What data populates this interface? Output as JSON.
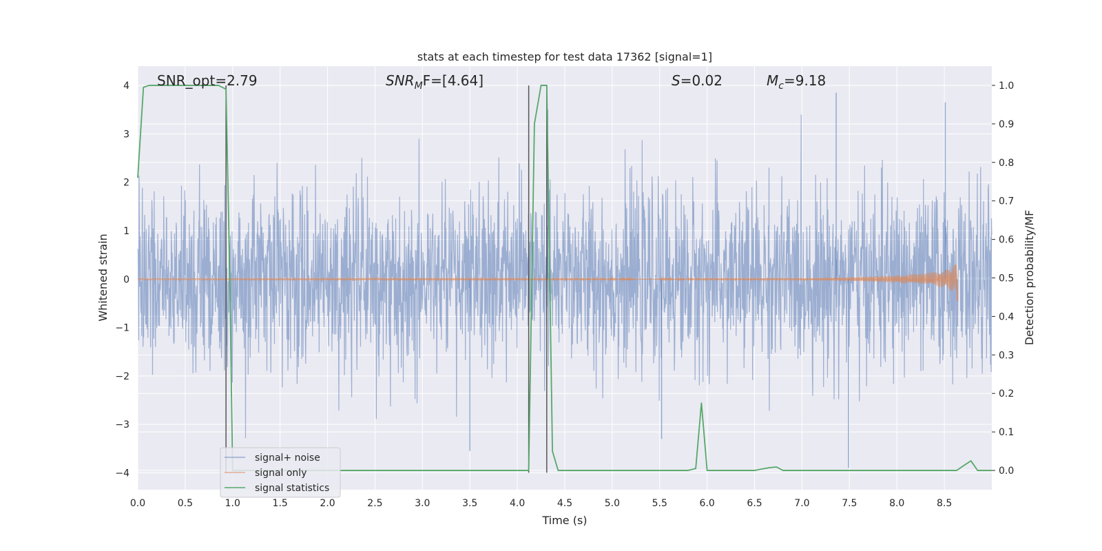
{
  "chart_data": {
    "type": "line",
    "title": "stats at each timestep for test data 17362 [signal=1]",
    "xlabel": "Time (s)",
    "ylabel_left": "Whitened strain",
    "ylabel_right": "Detection probability/MF",
    "xlim": [
      0.0,
      9.0
    ],
    "ylim_left": [
      -4.35,
      4.4
    ],
    "ylim_right": [
      -0.05,
      1.05
    ],
    "x_ticks": [
      "0.0",
      "0.5",
      "1.0",
      "1.5",
      "2.0",
      "2.5",
      "3.0",
      "3.5",
      "4.0",
      "4.5",
      "5.0",
      "5.5",
      "6.0",
      "6.5",
      "7.0",
      "7.5",
      "8.0",
      "8.5"
    ],
    "y_left_ticks": [
      "4",
      "3",
      "2",
      "1",
      "0",
      "−1",
      "−2",
      "−3",
      "−4"
    ],
    "y_right_ticks": [
      "1.0",
      "0.9",
      "0.8",
      "0.7",
      "0.6",
      "0.5",
      "0.4",
      "0.3",
      "0.2",
      "0.1",
      "0.0"
    ],
    "grid": true,
    "legend_position": "lower-left",
    "annotations": {
      "snr_opt": "SNR_opt=2.79",
      "snr_mf_main": "SNR",
      "snr_mf_sub": "M",
      "snr_mf_tail": "F=[4.64]",
      "s_main": "S",
      "s_tail": "=0.02",
      "mc_main": "M",
      "mc_sub": "c",
      "mc_tail": "=9.18"
    },
    "vertical_lines_x": [
      0.93,
      4.12,
      4.31
    ],
    "vertical_line_span_left": [
      -4.0,
      4.0
    ],
    "series": [
      {
        "name": "signal+ noise",
        "axis": "left",
        "color": "#4c72b0",
        "kind": "noise",
        "noise_sigma": 0.9,
        "outliers": [
          [
            3.5,
            -3.55
          ],
          [
            4.32,
            3.5
          ],
          [
            5.52,
            -3.3
          ],
          [
            7.49,
            -3.9
          ],
          [
            8.51,
            3.65
          ],
          [
            7.36,
            3.85
          ]
        ]
      },
      {
        "name": "signal only",
        "axis": "left",
        "color": "#dd8452",
        "kind": "chirp",
        "envelope": [
          [
            0.0,
            0.02
          ],
          [
            7.0,
            0.02
          ],
          [
            7.5,
            0.04
          ],
          [
            8.0,
            0.08
          ],
          [
            8.3,
            0.12
          ],
          [
            8.5,
            0.18
          ],
          [
            8.62,
            0.3
          ],
          [
            8.64,
            -0.45
          ]
        ]
      },
      {
        "name": "signal statistics",
        "axis": "right",
        "color": "#55a868",
        "x": [
          0.0,
          0.06,
          0.12,
          0.2,
          0.5,
          0.85,
          0.93,
          0.97,
          1.0,
          1.1,
          2.0,
          3.0,
          4.0,
          4.12,
          4.18,
          4.25,
          4.31,
          4.37,
          4.43,
          5.0,
          5.5,
          5.8,
          5.88,
          5.94,
          6.0,
          6.5,
          6.65,
          6.73,
          6.8,
          7.0,
          8.0,
          8.5,
          8.63,
          8.7,
          8.78,
          8.85,
          9.0
        ],
        "y": [
          0.76,
          0.995,
          1.0,
          1.0,
          1.0,
          1.0,
          0.99,
          0.5,
          0.0,
          0.0,
          0.0,
          0.0,
          0.0,
          0.0,
          0.9,
          1.0,
          1.0,
          0.05,
          0.0,
          0.0,
          0.0,
          0.0,
          0.005,
          0.175,
          0.0,
          0.0,
          0.007,
          0.009,
          0.0,
          0.0,
          0.0,
          0.0,
          0.0,
          0.012,
          0.025,
          0.0,
          0.0
        ]
      }
    ]
  }
}
